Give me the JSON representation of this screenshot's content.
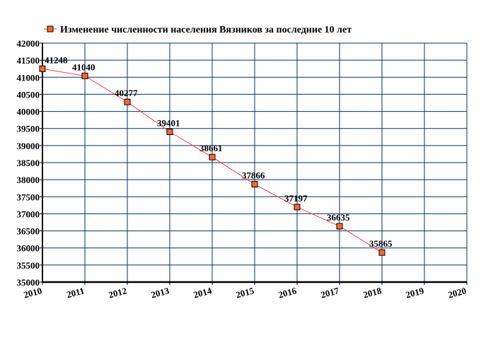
{
  "chart_data": {
    "type": "line",
    "legend": {
      "label": "Изменение численности населения Вязников за последние 10 лет",
      "position": "top"
    },
    "x": [
      2010,
      2011,
      2012,
      2013,
      2014,
      2015,
      2016,
      2017,
      2018
    ],
    "series": [
      {
        "name": "Изменение численности населения Вязников за последние 10 лет",
        "values": [
          41248,
          41040,
          40277,
          39401,
          38661,
          37866,
          37197,
          36635,
          35865
        ]
      }
    ],
    "xlim": [
      2010,
      2020
    ],
    "ylim": [
      35000,
      42000
    ],
    "x_ticks": [
      "2010",
      "2011",
      "2012",
      "2013",
      "2014",
      "2015",
      "2016",
      "2017",
      "2018",
      "2019",
      "2020"
    ],
    "y_ticks": [
      "35000",
      "35500",
      "36000",
      "36500",
      "37000",
      "37500",
      "38000",
      "38500",
      "39000",
      "39500",
      "40000",
      "40500",
      "41000",
      "41500",
      "42000"
    ],
    "grid": true,
    "colors": {
      "line": "#ff4040",
      "marker": "#ff6633",
      "grid": "#003366"
    }
  }
}
